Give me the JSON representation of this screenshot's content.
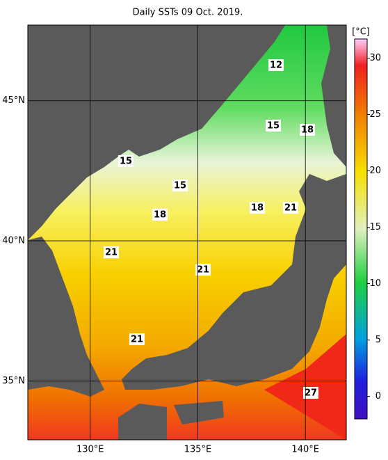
{
  "title": "Daily SSTs 09 Oct. 2019.",
  "map": {
    "lon_range": [
      127.1,
      141.9
    ],
    "lat_range": [
      32.9,
      47.7
    ],
    "lon_ticks": [
      {
        "value": 130,
        "label": "130°E"
      },
      {
        "value": 135,
        "label": "135°E"
      },
      {
        "value": 140,
        "label": "140°E"
      }
    ],
    "lat_ticks": [
      {
        "value": 35,
        "label": "35°N"
      },
      {
        "value": 40,
        "label": "40°N"
      },
      {
        "value": 45,
        "label": "45°N"
      }
    ],
    "contour_labels": [
      12,
      15,
      18,
      15,
      15,
      18,
      18,
      21,
      21,
      21,
      21,
      27
    ]
  },
  "colorbar": {
    "unit": "[°C]",
    "range": [
      -2,
      31.7
    ],
    "ticks": [
      0,
      5,
      10,
      15,
      20,
      25,
      30
    ]
  }
}
